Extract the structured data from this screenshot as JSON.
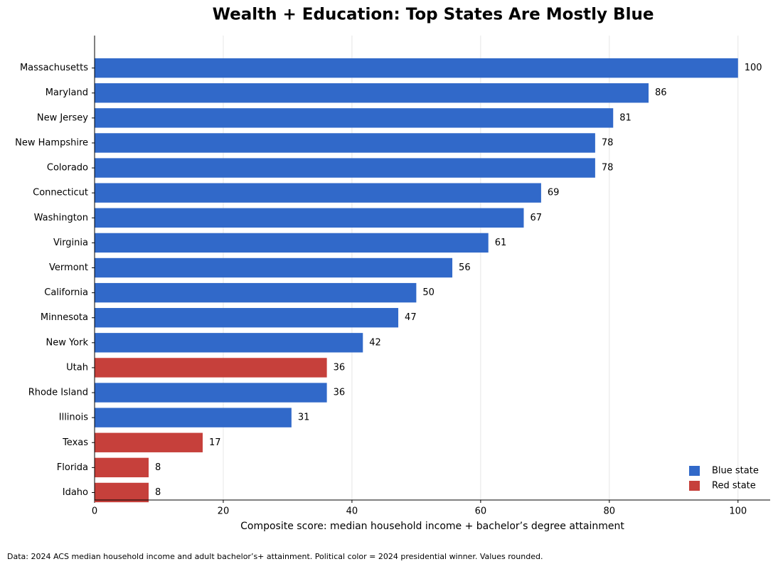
{
  "chart_data": {
    "type": "hbar",
    "title": "Wealth + Education: Top States Are Mostly Blue",
    "x_label": "Composite score: median household income + bachelor’s degree attainment",
    "footnote": "Data: 2024 ACS median household income and adult bachelor’s+ attainment. Political color = 2024 presidential winner. Values rounded.",
    "categories": [
      "Massachusetts",
      "Maryland",
      "New Jersey",
      "New Hampshire",
      "Colorado",
      "Connecticut",
      "Washington",
      "Virginia",
      "Vermont",
      "California",
      "Minnesota",
      "New York",
      "Utah",
      "Rhode Island",
      "Illinois",
      "Texas",
      "Florida",
      "Idaho"
    ],
    "series": [
      {
        "name": "Blue state",
        "color": "#3169c9",
        "values": [
          100,
          86.1,
          80.6,
          77.8,
          77.8,
          69.4,
          66.7,
          61.2,
          55.6,
          50,
          47.2,
          41.7,
          null,
          36.1,
          30.6,
          null,
          null,
          null
        ],
        "value_labels": [
          "100",
          "86",
          "81",
          "78",
          "78",
          "69",
          "67",
          "61",
          "56",
          "50",
          "47",
          "42",
          null,
          "36",
          "31",
          null,
          null,
          null
        ]
      },
      {
        "name": "Red state",
        "color": "#c6403b",
        "values": [
          null,
          null,
          null,
          null,
          null,
          null,
          null,
          null,
          null,
          null,
          null,
          null,
          36.1,
          null,
          null,
          16.8,
          8.4,
          8.4
        ],
        "value_labels": [
          null,
          null,
          null,
          null,
          null,
          null,
          null,
          null,
          null,
          null,
          null,
          null,
          "36",
          null,
          null,
          "17",
          "8",
          "8"
        ]
      }
    ],
    "xlim": [
      0,
      105
    ],
    "xticks": [
      0,
      20,
      40,
      60,
      80,
      100
    ],
    "grid": true,
    "legend": "lower right"
  }
}
